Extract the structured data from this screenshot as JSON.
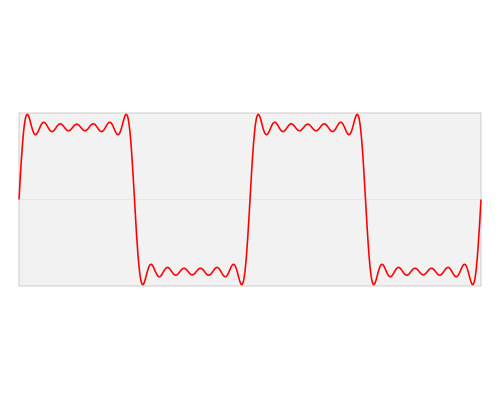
{
  "chart_data": {
    "type": "line",
    "title": "",
    "xlabel": "",
    "ylabel": "",
    "description_free": true,
    "xlim": [
      0,
      4
    ],
    "ylim": [
      -1.2,
      1.2
    ],
    "grid": false,
    "legend": "none",
    "series": [
      {
        "function": "partial_fourier_square_wave",
        "harmonics": [
          1,
          3,
          5,
          7,
          9,
          11,
          13
        ],
        "period": 2,
        "color": "#ff0000"
      }
    ],
    "colors": {
      "plot_background": "#f2f2f2",
      "plot_border": "#cccccc",
      "zero_line": "#e6e6e6",
      "line": "#ff0000"
    }
  }
}
